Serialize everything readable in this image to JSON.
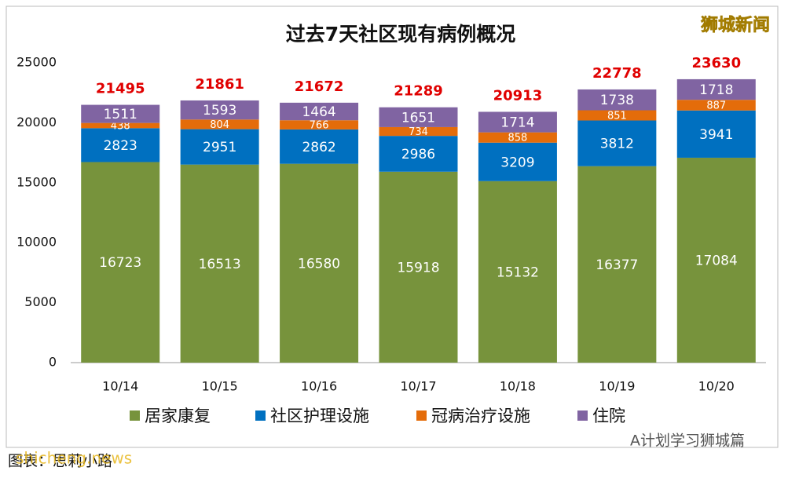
{
  "chart_data": {
    "type": "stacked-bar",
    "title": "过去7天社区现有病例概况",
    "categories": [
      "10/14",
      "10/15",
      "10/16",
      "10/17",
      "10/18",
      "10/19",
      "10/20"
    ],
    "series": [
      {
        "name": "居家康复",
        "color": "#77933c",
        "values": [
          16723,
          16513,
          16580,
          15918,
          15132,
          16377,
          17084
        ]
      },
      {
        "name": "社区护理设施",
        "color": "#0070c0",
        "values": [
          2823,
          2951,
          2862,
          2986,
          3209,
          3812,
          3941
        ]
      },
      {
        "name": "冠病治疗设施",
        "color": "#e46c0a",
        "values": [
          438,
          804,
          766,
          734,
          858,
          851,
          887
        ]
      },
      {
        "name": "住院",
        "color": "#8064a2",
        "values": [
          1511,
          1593,
          1464,
          1651,
          1714,
          1738,
          1718
        ]
      }
    ],
    "totals": [
      21495,
      21861,
      21672,
      21289,
      20913,
      22778,
      23630
    ],
    "ylim": [
      0,
      25000
    ],
    "yticks": [
      0,
      5000,
      10000,
      15000,
      20000,
      25000
    ],
    "grid": false,
    "legend": "bottom"
  },
  "watermark_top": "狮城新闻",
  "watermark_bottom": "A计划学习狮城篇",
  "footer": "图表：思莉小路",
  "footer_overlay": "shicheng.news"
}
